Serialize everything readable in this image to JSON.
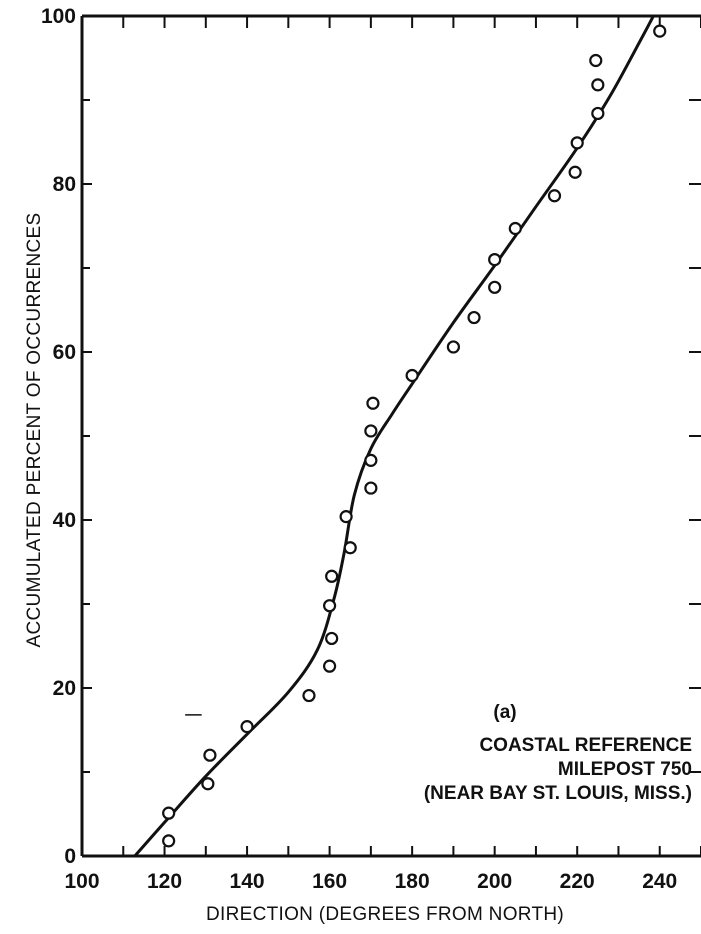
{
  "chart_data": {
    "type": "scatter",
    "title": "",
    "xlabel": "DIRECTION (DEGREES FROM NORTH)",
    "ylabel": "ACCUMULATED PERCENT OF OCCURRENCES",
    "xlim": [
      100,
      250
    ],
    "ylim": [
      0,
      100
    ],
    "x_ticks": [
      100,
      120,
      140,
      160,
      180,
      200,
      220,
      240
    ],
    "y_ticks": [
      0,
      20,
      40,
      60,
      80,
      100
    ],
    "grid": false,
    "annotations": [
      "(a)",
      "COASTAL REFERENCE",
      "MILEPOST 750",
      "(NEAR BAY ST. LOUIS, MISS.)"
    ],
    "series": [
      {
        "type": "scatter",
        "marker": "open-circle",
        "points": [
          {
            "x": 121,
            "y": 1.8
          },
          {
            "x": 121,
            "y": 5.1
          },
          {
            "x": 130.5,
            "y": 8.6
          },
          {
            "x": 131,
            "y": 12.0
          },
          {
            "x": 140,
            "y": 15.4
          },
          {
            "x": 155,
            "y": 19.1
          },
          {
            "x": 160,
            "y": 22.6
          },
          {
            "x": 160.5,
            "y": 25.9
          },
          {
            "x": 160,
            "y": 29.8
          },
          {
            "x": 160.5,
            "y": 33.3
          },
          {
            "x": 165,
            "y": 36.7
          },
          {
            "x": 164,
            "y": 40.4
          },
          {
            "x": 170,
            "y": 43.8
          },
          {
            "x": 170,
            "y": 47.1
          },
          {
            "x": 170,
            "y": 50.6
          },
          {
            "x": 170.5,
            "y": 53.9
          },
          {
            "x": 180,
            "y": 57.2
          },
          {
            "x": 190,
            "y": 60.6
          },
          {
            "x": 195,
            "y": 64.1
          },
          {
            "x": 200,
            "y": 67.7
          },
          {
            "x": 200,
            "y": 71.0
          },
          {
            "x": 205,
            "y": 74.7
          },
          {
            "x": 214.5,
            "y": 78.6
          },
          {
            "x": 219.5,
            "y": 81.4
          },
          {
            "x": 220,
            "y": 84.9
          },
          {
            "x": 225,
            "y": 88.4
          },
          {
            "x": 225,
            "y": 91.8
          },
          {
            "x": 224.5,
            "y": 94.7
          },
          {
            "x": 240,
            "y": 98.2
          }
        ]
      },
      {
        "type": "line",
        "style": "smooth-fit",
        "points": [
          {
            "x": 111,
            "y": -1
          },
          {
            "x": 120,
            "y": 4
          },
          {
            "x": 130,
            "y": 9.5
          },
          {
            "x": 140,
            "y": 14.5
          },
          {
            "x": 150,
            "y": 19.5
          },
          {
            "x": 157,
            "y": 24.5
          },
          {
            "x": 161,
            "y": 30.5
          },
          {
            "x": 163.5,
            "y": 36
          },
          {
            "x": 166,
            "y": 43
          },
          {
            "x": 170,
            "y": 48.5
          },
          {
            "x": 175,
            "y": 52.5
          },
          {
            "x": 180,
            "y": 56.2
          },
          {
            "x": 190,
            "y": 63.5
          },
          {
            "x": 200,
            "y": 70.3
          },
          {
            "x": 210,
            "y": 77.3
          },
          {
            "x": 220,
            "y": 84.3
          },
          {
            "x": 228,
            "y": 90.5
          },
          {
            "x": 235,
            "y": 96.8
          },
          {
            "x": 239,
            "y": 100.5
          }
        ]
      }
    ]
  }
}
